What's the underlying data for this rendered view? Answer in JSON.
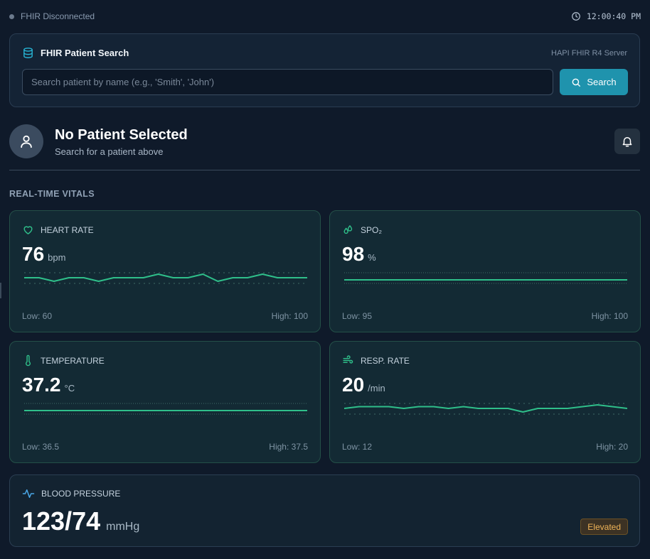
{
  "status": {
    "connection": "FHIR Disconnected",
    "time": "12:00:40 PM"
  },
  "search": {
    "title": "FHIR Patient Search",
    "server": "HAPI FHIR R4 Server",
    "placeholder": "Search patient by name (e.g., 'Smith', 'John')",
    "value": "",
    "button_label": "Search"
  },
  "patient": {
    "name": "No Patient Selected",
    "subtitle": "Search for a patient above"
  },
  "section_title": "REAL-TIME VITALS",
  "vitals": [
    {
      "label": "HEART RATE",
      "value": "76",
      "unit": "bpm",
      "low": "Low: 60",
      "high": "High: 100",
      "icon": "heart-icon",
      "trend": [
        76,
        76,
        75,
        76,
        76,
        75,
        76,
        76,
        76,
        77,
        76,
        76,
        77,
        75,
        76,
        76,
        77,
        76,
        76,
        76
      ]
    },
    {
      "label": "SPO₂",
      "value": "98",
      "unit": "%",
      "low": "Low: 95",
      "high": "High: 100",
      "icon": "droplets-icon",
      "trend": [
        98,
        98,
        98,
        98,
        98,
        98,
        98,
        98,
        98,
        98,
        98,
        98,
        98,
        98,
        98,
        98,
        98,
        98,
        98,
        98
      ]
    },
    {
      "label": "TEMPERATURE",
      "value": "37.2",
      "unit": "°C",
      "low": "Low: 36.5",
      "high": "High: 37.5",
      "icon": "thermometer-icon",
      "trend": [
        37.2,
        37.2,
        37.2,
        37.2,
        37.2,
        37.2,
        37.2,
        37.2,
        37.2,
        37.2,
        37.2,
        37.2,
        37.2,
        37.2,
        37.2,
        37.2,
        37.2,
        37.2,
        37.2,
        37.2
      ]
    },
    {
      "label": "RESP. RATE",
      "value": "20",
      "unit": "/min",
      "low": "Low: 12",
      "high": "High: 20",
      "icon": "wind-icon",
      "trend": [
        19,
        20,
        20,
        20,
        19,
        20,
        20,
        19,
        20,
        19,
        19,
        19,
        17,
        19,
        19,
        19,
        20,
        21,
        20,
        19
      ]
    }
  ],
  "blood_pressure": {
    "label": "BLOOD PRESSURE",
    "value": "123/74",
    "unit": "mmHg",
    "status": "Elevated",
    "icon": "activity-icon"
  },
  "colors": {
    "accent": "#1f93ad",
    "vital_line": "#2fbf8a",
    "warning": "#f0b458",
    "background": "#0f1a2a"
  }
}
